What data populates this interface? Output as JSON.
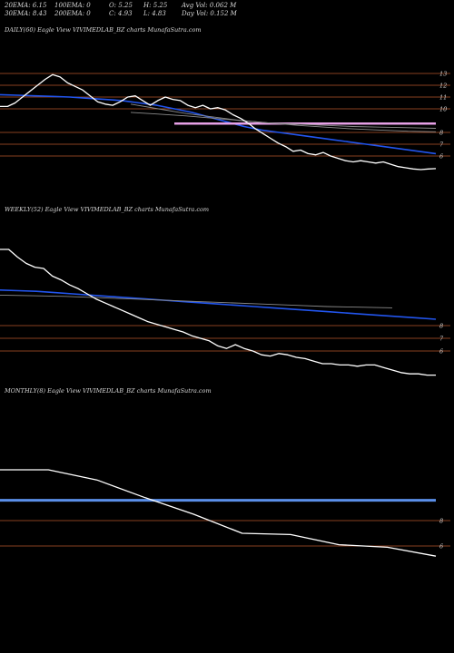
{
  "stats": {
    "row1": [
      "20EMA: 6.15",
      "100EMA: 0",
      "O: 5.25",
      "H: 5.25",
      "Avg Vol: 0.062  M"
    ],
    "row2": [
      "30EMA: 8.43",
      "200EMA: 0",
      "C: 4.93",
      "L: 4.83",
      "Day Vol: 0.152  M"
    ]
  },
  "colors": {
    "background": "#000000",
    "price": "#ffffff",
    "ema_blue": "#2255ee",
    "ema_light_blue": "#5a8ee8",
    "pink": "#e6a0e6",
    "support_line": "#b4552d",
    "grey_line": "#8a8a8a",
    "text": "#d8d8d8"
  },
  "chart_data": [
    {
      "type": "line",
      "title": "DAILY(60) Eagle   View  VIVIMEDLAB_BZ charts MunafaSutra.com",
      "ylim": [
        4,
        14
      ],
      "y_ticks": [
        13,
        12,
        11,
        10,
        8,
        7,
        6
      ],
      "levels": [
        13,
        12,
        11,
        10,
        8,
        7,
        6
      ],
      "series": [
        {
          "role": "price",
          "values": [
            10.2,
            10.2,
            10.5,
            11.0,
            11.5,
            12.0,
            12.5,
            12.9,
            12.7,
            12.2,
            11.9,
            11.6,
            11.1,
            10.6,
            10.4,
            10.3,
            10.6,
            11.0,
            11.1,
            10.7,
            10.3,
            10.7,
            11.0,
            10.8,
            10.7,
            10.3,
            10.1,
            10.3,
            10.0,
            10.1,
            9.9,
            9.5,
            9.2,
            8.8,
            8.3,
            7.9,
            7.5,
            7.1,
            6.8,
            6.4,
            6.5,
            6.2,
            6.1,
            6.3,
            6.0,
            5.8,
            5.6,
            5.5,
            5.6,
            5.5,
            5.4,
            5.5,
            5.3,
            5.1,
            5.0,
            4.9,
            4.85,
            4.9,
            4.93
          ]
        },
        {
          "role": "ema_blue",
          "values": [
            11.2,
            11.15,
            11.1,
            11.05,
            11.0,
            10.9,
            10.8,
            10.7,
            10.5,
            10.3,
            10.0,
            9.7,
            9.3,
            8.9,
            8.5,
            8.2,
            8.0,
            7.8,
            7.6,
            7.4,
            7.2,
            7.0,
            6.8,
            6.6,
            6.4,
            6.2
          ]
        },
        {
          "role": "pink",
          "values": [
            8.75,
            8.75,
            8.75,
            8.75,
            8.75,
            8.75,
            8.75,
            8.75,
            8.75,
            8.75,
            8.75,
            8.75,
            8.75,
            8.75,
            8.75
          ]
        },
        {
          "role": "grey",
          "values": [
            9.7,
            9.55,
            9.4,
            9.2,
            9.0,
            8.8,
            8.7,
            8.6,
            8.5,
            8.45,
            8.4,
            8.35
          ]
        },
        {
          "role": "grey",
          "values": [
            10.4,
            10.0,
            9.6,
            9.3,
            9.0,
            8.8,
            8.6,
            8.45,
            8.3,
            8.2,
            8.1,
            8.05
          ]
        }
      ]
    },
    {
      "type": "line",
      "title": "WEEKLY(52) Eagle   View  VIVIMEDLAB_BZ charts MunafaSutra.com",
      "ylim": [
        4,
        14
      ],
      "y_ticks": [
        8,
        7,
        6
      ],
      "levels": [
        8,
        7,
        6
      ],
      "series": [
        {
          "role": "price",
          "values": [
            14.0,
            14.0,
            13.4,
            12.9,
            12.6,
            12.5,
            11.9,
            11.6,
            11.2,
            10.9,
            10.5,
            10.1,
            9.8,
            9.5,
            9.2,
            8.9,
            8.6,
            8.3,
            8.1,
            7.9,
            7.7,
            7.5,
            7.2,
            7.0,
            6.8,
            6.4,
            6.2,
            6.5,
            6.2,
            6.0,
            5.7,
            5.6,
            5.8,
            5.7,
            5.5,
            5.4,
            5.2,
            5.0,
            5.0,
            4.9,
            4.9,
            4.8,
            4.9,
            4.9,
            4.7,
            4.5,
            4.3,
            4.2,
            4.2,
            4.1,
            4.1
          ]
        },
        {
          "role": "ema_blue",
          "values": [
            10.8,
            10.75,
            10.7,
            10.6,
            10.5,
            10.4,
            10.3,
            10.2,
            10.1,
            10.0,
            9.9,
            9.8,
            9.7,
            9.6,
            9.5,
            9.4,
            9.3,
            9.2,
            9.1,
            9.0,
            8.9,
            8.8,
            8.7,
            8.6,
            8.5
          ]
        },
        {
          "role": "grey",
          "values": [
            10.4,
            10.35,
            10.3,
            10.2,
            10.1,
            10.0,
            9.9,
            9.8,
            9.7,
            9.6,
            9.5,
            9.45,
            9.4
          ]
        }
      ]
    },
    {
      "type": "line",
      "title": "MONTHLY(8) Eagle   View  VIVIMEDLAB_BZ charts MunafaSutra.com",
      "ylim": [
        4,
        14
      ],
      "y_ticks": [
        8,
        6
      ],
      "levels": [
        8,
        6
      ],
      "series": [
        {
          "role": "price",
          "values": [
            12.0,
            12.0,
            11.2,
            9.8,
            8.5,
            7.0,
            6.9,
            6.1,
            5.9,
            5.2
          ]
        },
        {
          "role": "ema_light_blue",
          "values": [
            9.6,
            9.6,
            9.6,
            9.6,
            9.6,
            9.6,
            9.6,
            9.6,
            9.6,
            9.6
          ]
        }
      ]
    }
  ]
}
